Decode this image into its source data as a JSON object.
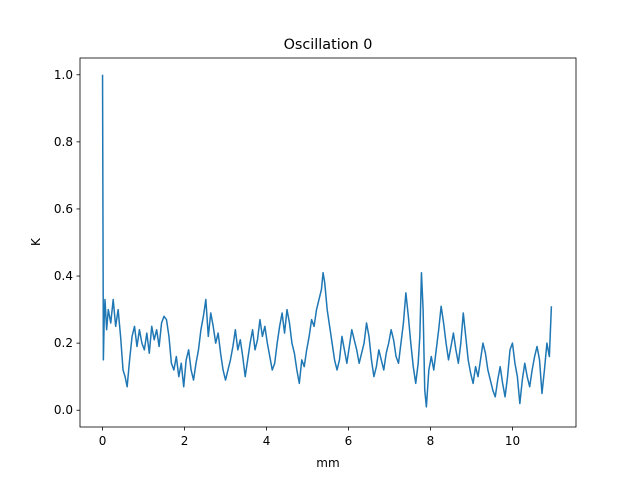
{
  "chart_data": {
    "type": "line",
    "title": "Oscillation 0",
    "xlabel": "mm",
    "ylabel": "K",
    "xlim": [
      -0.55,
      11.55
    ],
    "ylim": [
      -0.05,
      1.05
    ],
    "xticks": [
      0,
      2,
      4,
      6,
      8,
      10
    ],
    "yticks": [
      0.0,
      0.2,
      0.4,
      0.6,
      0.8,
      1.0
    ],
    "xtick_labels": [
      "0",
      "2",
      "4",
      "6",
      "8",
      "10"
    ],
    "ytick_labels": [
      "0.0",
      "0.2",
      "0.4",
      "0.6",
      "0.8",
      "1.0"
    ],
    "grid": false,
    "series_color": "#1f77b4",
    "series": [
      {
        "x": [
          0.0,
          0.02,
          0.04,
          0.06,
          0.1,
          0.14,
          0.2,
          0.26,
          0.32,
          0.38,
          0.44,
          0.5,
          0.55,
          0.6,
          0.66,
          0.72,
          0.78,
          0.84,
          0.9,
          0.96,
          1.02,
          1.08,
          1.14,
          1.2,
          1.26,
          1.32,
          1.38,
          1.44,
          1.5,
          1.56,
          1.62,
          1.68,
          1.74,
          1.8,
          1.86,
          1.92,
          1.98,
          2.04,
          2.1,
          2.16,
          2.22,
          2.28,
          2.34,
          2.4,
          2.46,
          2.52,
          2.58,
          2.64,
          2.7,
          2.76,
          2.82,
          2.88,
          2.94,
          3.0,
          3.06,
          3.12,
          3.18,
          3.24,
          3.3,
          3.36,
          3.42,
          3.48,
          3.54,
          3.6,
          3.66,
          3.72,
          3.78,
          3.84,
          3.9,
          3.96,
          4.02,
          4.08,
          4.14,
          4.2,
          4.26,
          4.32,
          4.38,
          4.44,
          4.5,
          4.56,
          4.62,
          4.68,
          4.74,
          4.8,
          4.86,
          4.92,
          4.98,
          5.04,
          5.1,
          5.16,
          5.22,
          5.28,
          5.34,
          5.38,
          5.42,
          5.48,
          5.54,
          5.6,
          5.66,
          5.72,
          5.78,
          5.84,
          5.9,
          5.96,
          6.02,
          6.08,
          6.14,
          6.2,
          6.26,
          6.32,
          6.38,
          6.44,
          6.5,
          6.56,
          6.62,
          6.68,
          6.74,
          6.8,
          6.86,
          6.92,
          6.98,
          7.04,
          7.1,
          7.16,
          7.22,
          7.28,
          7.34,
          7.4,
          7.46,
          7.52,
          7.58,
          7.64,
          7.7,
          7.74,
          7.78,
          7.82,
          7.86,
          7.9,
          7.96,
          8.02,
          8.08,
          8.14,
          8.2,
          8.26,
          8.32,
          8.38,
          8.44,
          8.5,
          8.56,
          8.62,
          8.68,
          8.74,
          8.8,
          8.86,
          8.92,
          8.98,
          9.04,
          9.1,
          9.16,
          9.22,
          9.28,
          9.34,
          9.4,
          9.46,
          9.52,
          9.58,
          9.64,
          9.7,
          9.76,
          9.82,
          9.88,
          9.94,
          10.0,
          10.06,
          10.12,
          10.18,
          10.24,
          10.3,
          10.36,
          10.42,
          10.48,
          10.54,
          10.6,
          10.66,
          10.72,
          10.78,
          10.84,
          10.9,
          10.95
        ],
        "y": [
          1.0,
          0.15,
          0.27,
          0.33,
          0.24,
          0.3,
          0.26,
          0.33,
          0.25,
          0.3,
          0.22,
          0.12,
          0.1,
          0.07,
          0.15,
          0.22,
          0.25,
          0.19,
          0.24,
          0.2,
          0.18,
          0.23,
          0.17,
          0.25,
          0.21,
          0.24,
          0.19,
          0.26,
          0.28,
          0.27,
          0.22,
          0.14,
          0.12,
          0.16,
          0.1,
          0.14,
          0.07,
          0.15,
          0.18,
          0.12,
          0.09,
          0.14,
          0.18,
          0.24,
          0.28,
          0.33,
          0.22,
          0.29,
          0.25,
          0.2,
          0.23,
          0.17,
          0.12,
          0.09,
          0.12,
          0.15,
          0.19,
          0.24,
          0.18,
          0.21,
          0.16,
          0.1,
          0.15,
          0.2,
          0.24,
          0.18,
          0.21,
          0.27,
          0.22,
          0.25,
          0.2,
          0.16,
          0.12,
          0.14,
          0.2,
          0.25,
          0.29,
          0.23,
          0.3,
          0.26,
          0.2,
          0.17,
          0.12,
          0.08,
          0.15,
          0.13,
          0.18,
          0.22,
          0.27,
          0.25,
          0.3,
          0.33,
          0.36,
          0.41,
          0.38,
          0.3,
          0.25,
          0.2,
          0.15,
          0.12,
          0.15,
          0.22,
          0.18,
          0.14,
          0.19,
          0.24,
          0.21,
          0.18,
          0.14,
          0.17,
          0.2,
          0.26,
          0.22,
          0.15,
          0.1,
          0.13,
          0.18,
          0.15,
          0.12,
          0.17,
          0.2,
          0.24,
          0.21,
          0.16,
          0.14,
          0.2,
          0.26,
          0.35,
          0.28,
          0.2,
          0.13,
          0.08,
          0.14,
          0.22,
          0.41,
          0.3,
          0.06,
          0.01,
          0.12,
          0.16,
          0.12,
          0.18,
          0.24,
          0.31,
          0.26,
          0.2,
          0.15,
          0.19,
          0.23,
          0.18,
          0.14,
          0.2,
          0.29,
          0.22,
          0.15,
          0.11,
          0.08,
          0.13,
          0.1,
          0.15,
          0.2,
          0.17,
          0.12,
          0.09,
          0.06,
          0.04,
          0.09,
          0.13,
          0.08,
          0.04,
          0.1,
          0.18,
          0.2,
          0.14,
          0.1,
          0.02,
          0.09,
          0.14,
          0.1,
          0.07,
          0.12,
          0.16,
          0.19,
          0.15,
          0.05,
          0.12,
          0.2,
          0.16,
          0.31
        ]
      }
    ]
  }
}
